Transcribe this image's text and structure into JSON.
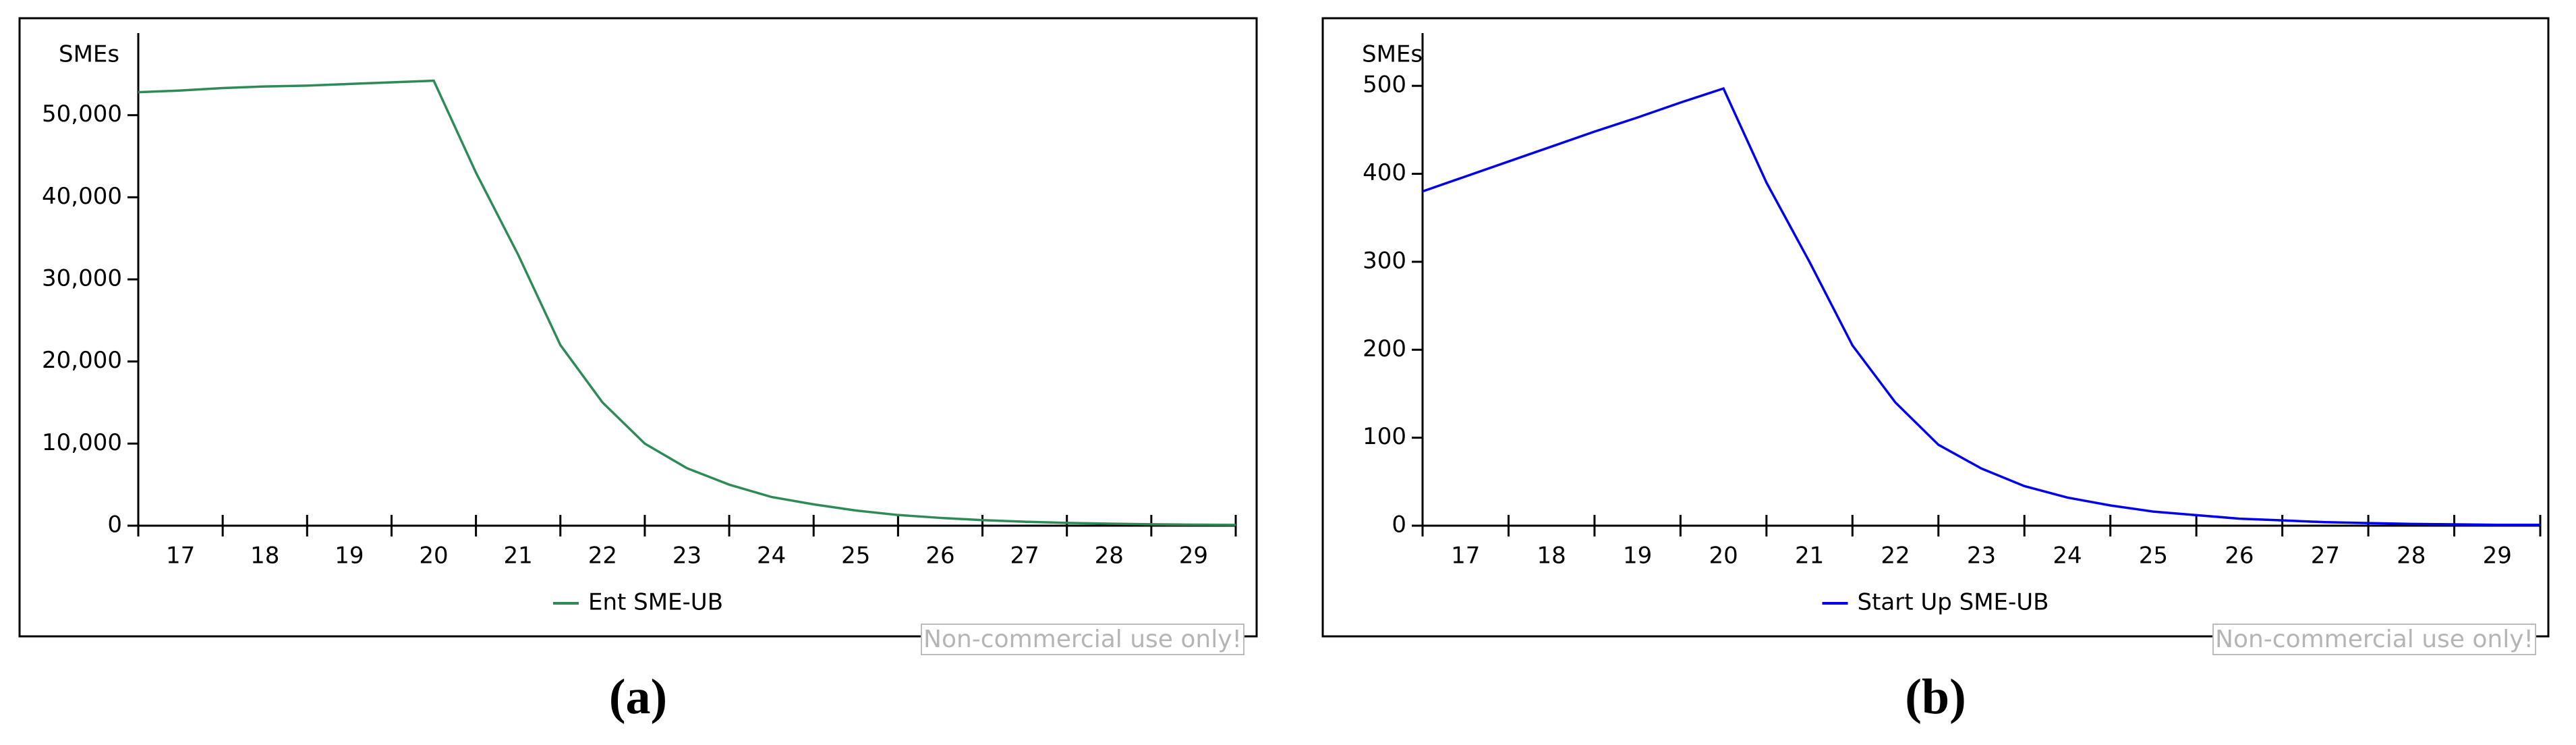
{
  "chart_data": [
    {
      "type": "line",
      "y_label": "SMEs",
      "caption": "(a)",
      "watermark": "Non-commercial use only!",
      "x": [
        16.5,
        17,
        17.5,
        18,
        18.5,
        19,
        19.5,
        20,
        20.5,
        21,
        21.5,
        22,
        22.5,
        23,
        23.5,
        24,
        24.5,
        25,
        25.5,
        26,
        26.5,
        27,
        27.5,
        28,
        28.5,
        29,
        29.5
      ],
      "series": [
        {
          "name": "Ent SME-UB",
          "color": "#2e8b57",
          "values": [
            52800,
            53000,
            53300,
            53500,
            53600,
            53800,
            54000,
            54200,
            43000,
            33000,
            22000,
            15000,
            10000,
            7000,
            5000,
            3500,
            2600,
            1850,
            1300,
            950,
            680,
            480,
            340,
            245,
            175,
            125,
            90
          ]
        }
      ],
      "xlim": [
        16.5,
        29.5
      ],
      "xticks": [
        17,
        18,
        19,
        20,
        21,
        22,
        23,
        24,
        25,
        26,
        27,
        28,
        29
      ],
      "ylim": [
        0,
        60000
      ],
      "yticks": [
        0,
        {
          "value": 10000,
          "label": "10,000"
        },
        {
          "value": 20000,
          "label": "20,000"
        },
        {
          "value": 30000,
          "label": "30,000"
        },
        {
          "value": 40000,
          "label": "40,000"
        },
        {
          "value": 50000,
          "label": "50,000"
        }
      ],
      "grid": false
    },
    {
      "type": "line",
      "y_label": "SMEs",
      "caption": "(b)",
      "watermark": "Non-commercial use only!",
      "x": [
        16.5,
        17,
        17.5,
        18,
        18.5,
        19,
        19.5,
        20,
        20.5,
        21,
        21.5,
        22,
        22.5,
        23,
        23.5,
        24,
        24.5,
        25,
        25.5,
        26,
        26.5,
        27,
        27.5,
        28,
        28.5,
        29,
        29.5
      ],
      "series": [
        {
          "name": "Start Up SME-UB",
          "color": "#0000ee",
          "values": [
            380,
            397,
            414,
            431,
            448,
            464,
            481,
            497,
            390,
            300,
            205,
            140,
            92,
            65,
            45,
            32,
            23,
            16,
            12,
            8,
            6,
            4,
            3,
            2,
            1.5,
            1,
            1
          ]
        }
      ],
      "xlim": [
        16.5,
        29.5
      ],
      "xticks": [
        17,
        18,
        19,
        20,
        21,
        22,
        23,
        24,
        25,
        26,
        27,
        28,
        29
      ],
      "ylim": [
        0,
        560
      ],
      "yticks": [
        0,
        100,
        200,
        300,
        400,
        500
      ],
      "grid": false
    }
  ]
}
